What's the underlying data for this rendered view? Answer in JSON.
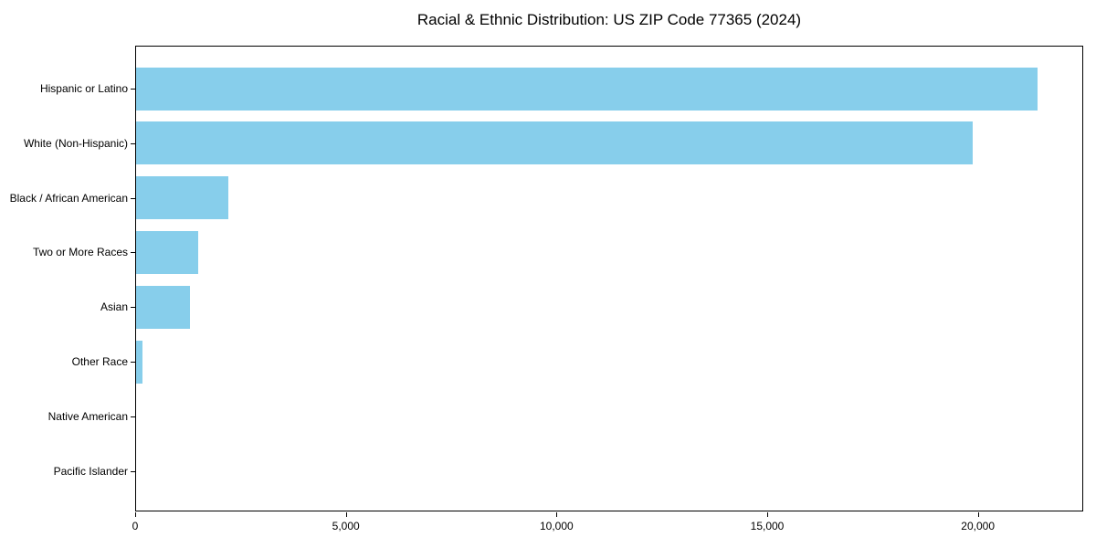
{
  "chart_data": {
    "type": "bar",
    "orientation": "horizontal",
    "title": "Racial & Ethnic Distribution: US ZIP Code 77365 (2024)",
    "categories": [
      "Hispanic or Latino",
      "White (Non-Hispanic)",
      "Black / African American",
      "Two or More Races",
      "Asian",
      "Other Race",
      "Native American",
      "Pacific Islander"
    ],
    "values": [
      21400,
      19860,
      2200,
      1470,
      1280,
      160,
      0,
      0
    ],
    "xlabel": "",
    "ylabel": "",
    "xlim": [
      0,
      22500
    ],
    "x_ticks": [
      0,
      5000,
      10000,
      15000,
      20000
    ],
    "x_tick_labels": [
      "0",
      "5,000",
      "10,000",
      "15,000",
      "20,000"
    ],
    "bar_color": "#87CEEB",
    "frame_color": "#000000",
    "grid": false,
    "legend": false
  }
}
